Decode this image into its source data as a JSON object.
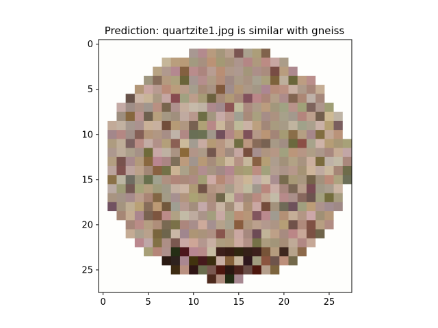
{
  "chart_data": {
    "type": "heatmap",
    "title": "Prediction: quartzite1.jpg is similar with gneiss",
    "xlabel": "",
    "ylabel": "",
    "image_size": [
      28,
      28
    ],
    "xlim": [
      -0.5,
      27.5
    ],
    "ylim": [
      27.5,
      -0.5
    ],
    "x_ticks": [
      0,
      5,
      10,
      15,
      20,
      25
    ],
    "y_ticks": [
      0,
      5,
      10,
      15,
      20,
      25
    ],
    "x_tick_labels": [
      "0",
      "5",
      "10",
      "15",
      "20",
      "25"
    ],
    "y_tick_labels": [
      "0",
      "5",
      "10",
      "15",
      "20",
      "25"
    ],
    "grid": false,
    "colors": {
      "background": "#fefefc",
      "rock_base": "#ae9483",
      "rock_dark": "#4e321f",
      "rock_light": "#d2c0ae"
    }
  }
}
